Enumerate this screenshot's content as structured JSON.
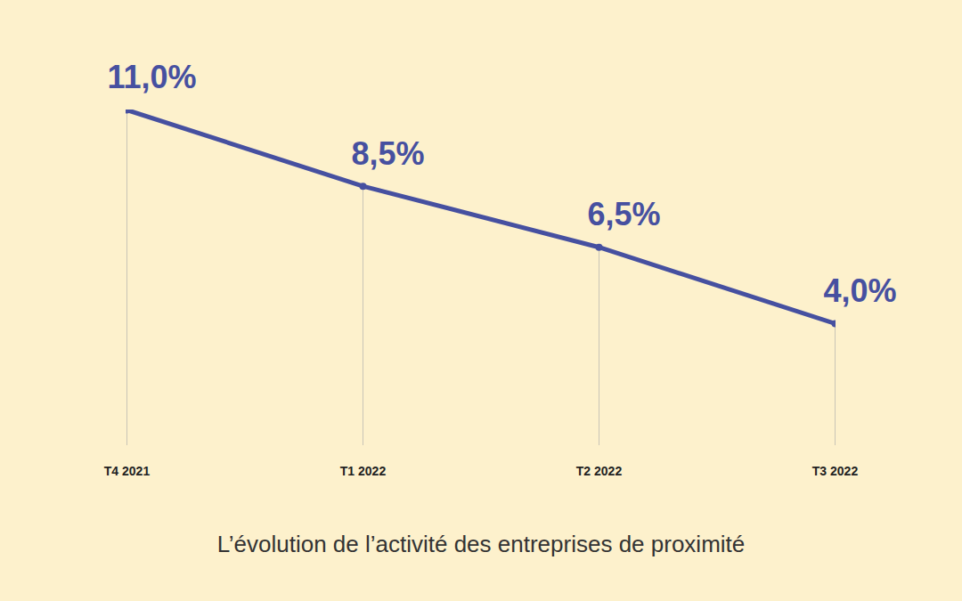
{
  "chart_data": {
    "type": "line",
    "title": "L’évolution de l’activité des entreprises de proximité",
    "categories": [
      "T4 2021",
      "T1 2022",
      "T2 2022",
      "T3 2022"
    ],
    "values": [
      11.0,
      8.5,
      6.5,
      4.0
    ],
    "value_labels": [
      "11,0%",
      "8,5%",
      "6,5%",
      "4,0%"
    ],
    "data_labels": true,
    "color": "#4650a0",
    "marker": "circle",
    "ylim": [
      0,
      11
    ],
    "tick_labels": "x",
    "grid": false
  }
}
